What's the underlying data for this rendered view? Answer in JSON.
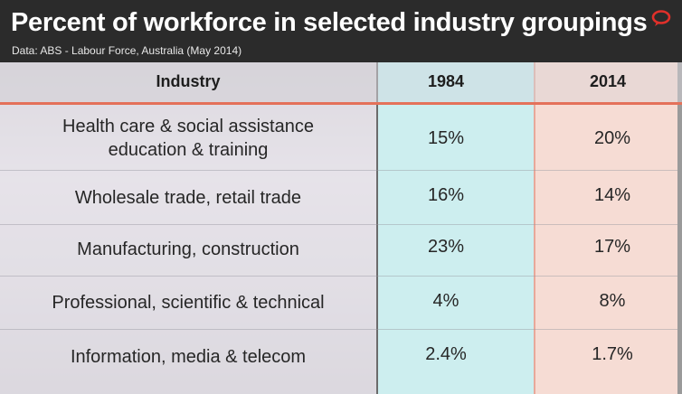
{
  "header": {
    "title": "Percent of workforce in selected industry groupings",
    "subtitle": "Data: ABS - Labour Force, Australia (May 2014)",
    "logo_icon": "speech-bubble-logo-icon"
  },
  "colors": {
    "header_bg": "#2b2b2b",
    "col_1984": "#cdeeef",
    "col_2014": "#f6dcd4",
    "accent": "#e4715a"
  },
  "chart_data": {
    "type": "table",
    "columns": [
      "Industry",
      "1984",
      "2014"
    ],
    "rows": [
      {
        "industry": [
          "Health care & social assistance",
          "education & training"
        ],
        "v1984": "15%",
        "v2014": "20%"
      },
      {
        "industry": [
          "Wholesale trade, retail trade"
        ],
        "v1984": "16%",
        "v2014": "14%"
      },
      {
        "industry": [
          "Manufacturing, construction"
        ],
        "v1984": "23%",
        "v2014": "17%"
      },
      {
        "industry": [
          "Professional, scientific & technical"
        ],
        "v1984": "4%",
        "v2014": "8%"
      },
      {
        "industry": [
          "Information, media & telecom"
        ],
        "v1984": "2.4%",
        "v2014": "1.7%"
      }
    ],
    "series": [
      {
        "name": "1984",
        "values": [
          15,
          16,
          23,
          4,
          2.4
        ]
      },
      {
        "name": "2014",
        "values": [
          20,
          14,
          17,
          8,
          1.7
        ]
      }
    ]
  }
}
